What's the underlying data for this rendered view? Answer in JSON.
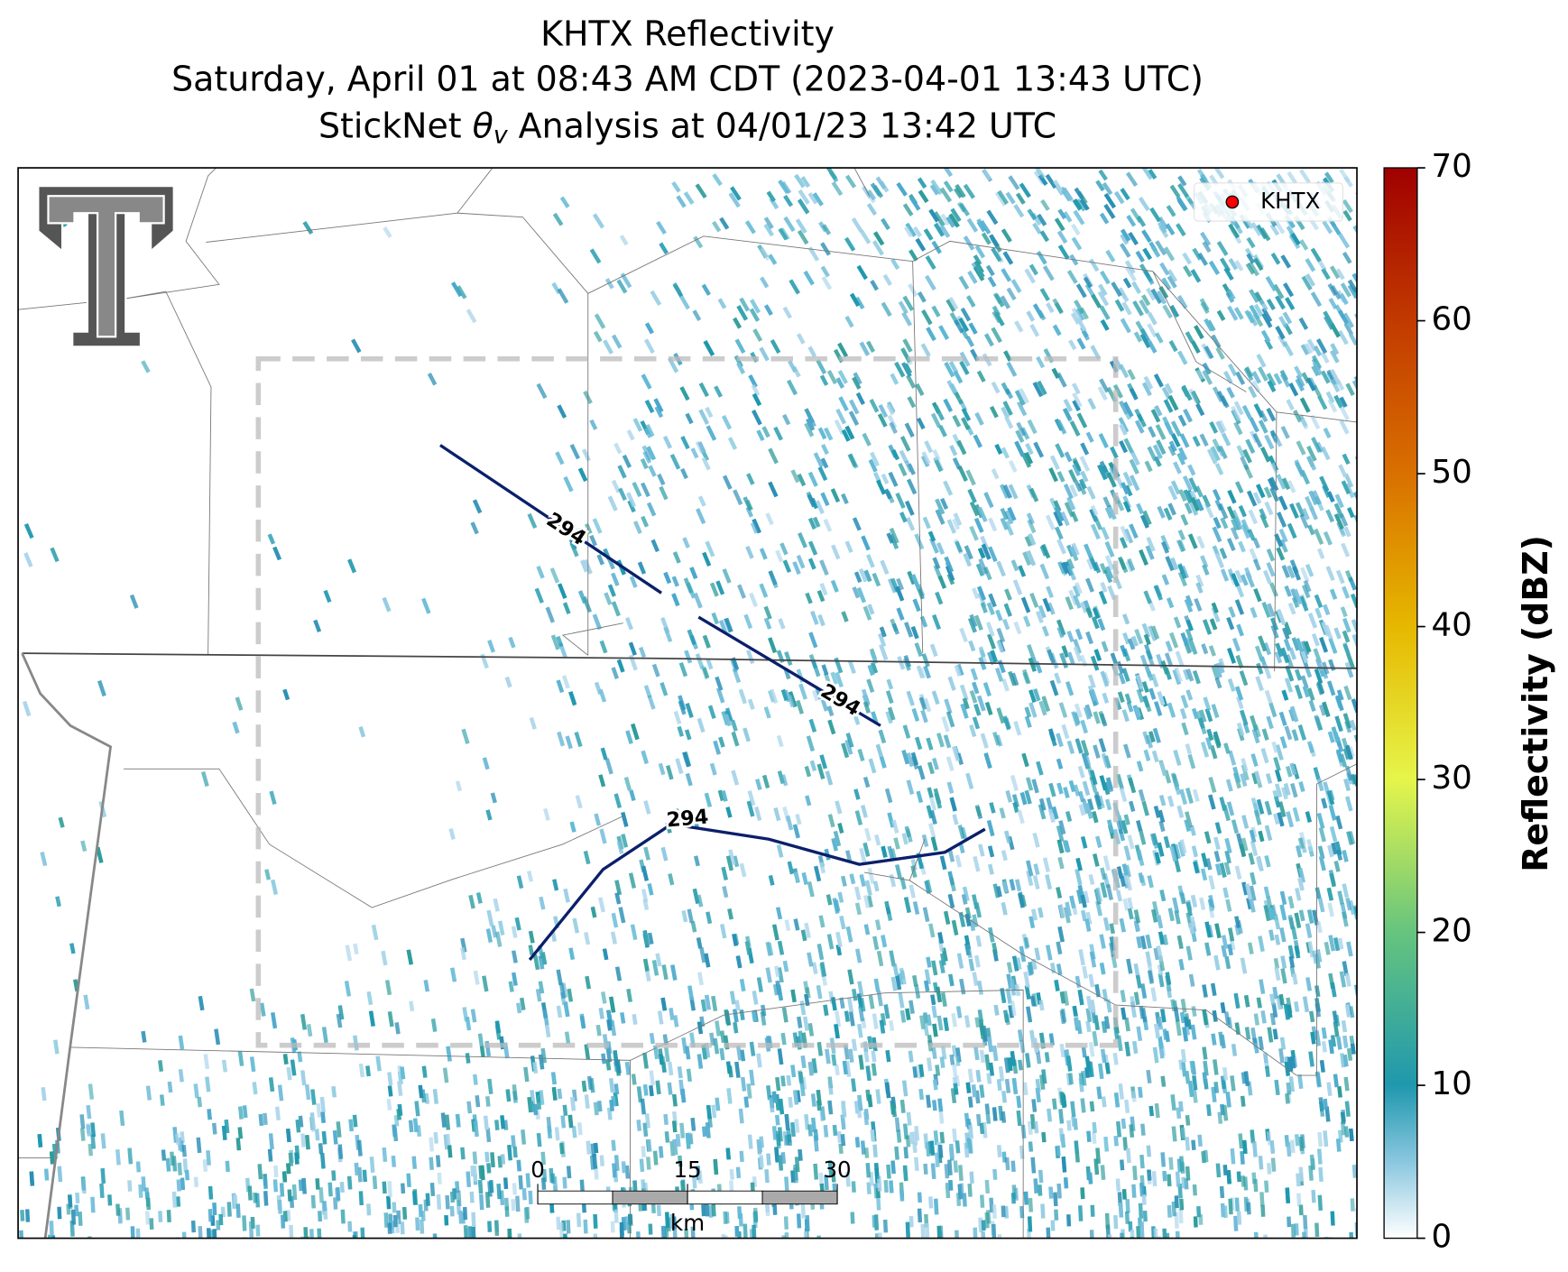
{
  "header": {
    "title": "KHTX Reflectivity",
    "subtitle": "Saturday, April 01 at 08:43 AM CDT (2023-04-01 13:43 UTC)",
    "analysis": {
      "before": "StickNet ",
      "symbol": "θ",
      "subscript": "v",
      "after": " Analysis at 04/01/23 13:42 UTC"
    }
  },
  "legend": {
    "label": "KHTX",
    "color": "#ff0000"
  },
  "contours": [
    {
      "level": 294
    },
    {
      "level": 294
    },
    {
      "level": 294
    }
  ],
  "scale_bar": {
    "ticks": [
      0,
      15,
      30
    ],
    "unit": "km"
  },
  "colorbar": {
    "label": "Reflectivity (dBZ)",
    "lim": [
      0,
      70
    ],
    "ticks": [
      0,
      10,
      20,
      30,
      40,
      50,
      60,
      70
    ]
  }
}
